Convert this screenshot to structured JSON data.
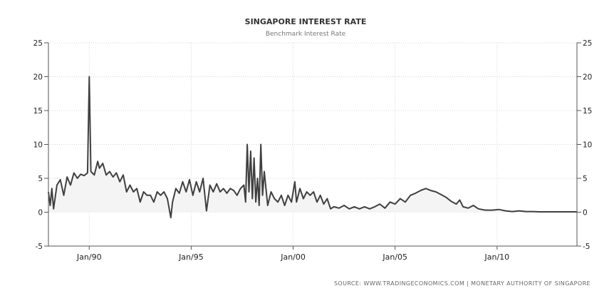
{
  "chart_data": {
    "type": "line",
    "title": "SINGAPORE INTEREST RATE",
    "subtitle": "Benchmark Interest Rate",
    "source": "SOURCE:  WWW.TRADINGECONOMICS.COM  |  MONETARY AUTHORITY  OF  SINGAPORE",
    "xlabel": "",
    "ylabel": "",
    "xlim": [
      "1988-01",
      "2013-12"
    ],
    "ylim": [
      -5,
      25
    ],
    "y_ticks": [
      -5,
      0,
      5,
      10,
      15,
      20,
      25
    ],
    "x_ticks": [
      {
        "date": "1990-01",
        "label": "Jan/90"
      },
      {
        "date": "1995-01",
        "label": "Jan/95"
      },
      {
        "date": "2000-01",
        "label": "Jan/00"
      },
      {
        "date": "2005-01",
        "label": "Jan/05"
      },
      {
        "date": "2010-01",
        "label": "Jan/10"
      }
    ],
    "grid": true,
    "y_axis_both_sides": true,
    "fill_below_line": true,
    "colors": {
      "line": "#404040",
      "grid": "#d4d4d4",
      "axis": "#555555",
      "fill": "#f4f4f4"
    },
    "series": [
      {
        "points": [
          [
            "1988-01",
            3.0
          ],
          [
            "1988-02",
            1.0
          ],
          [
            "1988-03",
            3.5
          ],
          [
            "1988-04",
            0.5
          ],
          [
            "1988-06",
            4.0
          ],
          [
            "1988-08",
            4.8
          ],
          [
            "1988-10",
            2.5
          ],
          [
            "1988-12",
            5.2
          ],
          [
            "1989-02",
            4.0
          ],
          [
            "1989-04",
            5.8
          ],
          [
            "1989-06",
            5.0
          ],
          [
            "1989-08",
            5.6
          ],
          [
            "1989-10",
            5.4
          ],
          [
            "1989-12",
            5.8
          ],
          [
            "1990-01",
            20.0
          ],
          [
            "1990-02",
            6.0
          ],
          [
            "1990-04",
            5.5
          ],
          [
            "1990-06",
            7.5
          ],
          [
            "1990-07",
            6.5
          ],
          [
            "1990-09",
            7.2
          ],
          [
            "1990-11",
            5.5
          ],
          [
            "1991-01",
            6.0
          ],
          [
            "1991-03",
            5.2
          ],
          [
            "1991-05",
            5.8
          ],
          [
            "1991-07",
            4.5
          ],
          [
            "1991-09",
            5.5
          ],
          [
            "1991-11",
            3.0
          ],
          [
            "1992-01",
            4.0
          ],
          [
            "1992-03",
            3.0
          ],
          [
            "1992-05",
            3.5
          ],
          [
            "1992-07",
            1.5
          ],
          [
            "1992-09",
            3.0
          ],
          [
            "1992-11",
            2.5
          ],
          [
            "1993-01",
            2.5
          ],
          [
            "1993-03",
            1.5
          ],
          [
            "1993-05",
            3.0
          ],
          [
            "1993-07",
            2.5
          ],
          [
            "1993-09",
            3.0
          ],
          [
            "1993-11",
            2.0
          ],
          [
            "1994-01",
            -0.8
          ],
          [
            "1994-02",
            1.5
          ],
          [
            "1994-04",
            3.5
          ],
          [
            "1994-06",
            2.8
          ],
          [
            "1994-08",
            4.5
          ],
          [
            "1994-10",
            3.0
          ],
          [
            "1994-12",
            4.8
          ],
          [
            "1995-02",
            2.5
          ],
          [
            "1995-04",
            4.5
          ],
          [
            "1995-06",
            3.0
          ],
          [
            "1995-08",
            5.0
          ],
          [
            "1995-10",
            0.2
          ],
          [
            "1995-12",
            4.0
          ],
          [
            "1996-02",
            3.0
          ],
          [
            "1996-04",
            4.2
          ],
          [
            "1996-06",
            3.0
          ],
          [
            "1996-08",
            3.5
          ],
          [
            "1996-10",
            2.8
          ],
          [
            "1996-12",
            3.5
          ],
          [
            "1997-02",
            3.2
          ],
          [
            "1997-04",
            2.5
          ],
          [
            "1997-06",
            3.5
          ],
          [
            "1997-08",
            4.0
          ],
          [
            "1997-09",
            1.5
          ],
          [
            "1997-10",
            10.0
          ],
          [
            "1997-11",
            3.0
          ],
          [
            "1997-12",
            9.0
          ],
          [
            "1998-01",
            2.0
          ],
          [
            "1998-02",
            8.0
          ],
          [
            "1998-03",
            1.5
          ],
          [
            "1998-04",
            5.0
          ],
          [
            "1998-05",
            1.0
          ],
          [
            "1998-06",
            10.0
          ],
          [
            "1998-07",
            2.5
          ],
          [
            "1998-08",
            6.0
          ],
          [
            "1998-10",
            1.0
          ],
          [
            "1998-12",
            3.0
          ],
          [
            "1999-02",
            2.0
          ],
          [
            "1999-04",
            1.5
          ],
          [
            "1999-06",
            2.5
          ],
          [
            "1999-08",
            1.0
          ],
          [
            "1999-10",
            2.5
          ],
          [
            "1999-12",
            1.5
          ],
          [
            "2000-02",
            4.5
          ],
          [
            "2000-03",
            1.5
          ],
          [
            "2000-05",
            3.5
          ],
          [
            "2000-07",
            2.0
          ],
          [
            "2000-09",
            3.0
          ],
          [
            "2000-11",
            2.5
          ],
          [
            "2001-01",
            3.0
          ],
          [
            "2001-03",
            1.5
          ],
          [
            "2001-05",
            2.5
          ],
          [
            "2001-07",
            1.2
          ],
          [
            "2001-09",
            2.0
          ],
          [
            "2001-11",
            0.5
          ],
          [
            "2002-01",
            0.8
          ],
          [
            "2002-04",
            0.6
          ],
          [
            "2002-07",
            1.0
          ],
          [
            "2002-10",
            0.5
          ],
          [
            "2003-01",
            0.8
          ],
          [
            "2003-04",
            0.5
          ],
          [
            "2003-07",
            0.8
          ],
          [
            "2003-10",
            0.5
          ],
          [
            "2004-01",
            0.8
          ],
          [
            "2004-04",
            1.2
          ],
          [
            "2004-07",
            0.6
          ],
          [
            "2004-10",
            1.5
          ],
          [
            "2005-01",
            1.2
          ],
          [
            "2005-04",
            2.0
          ],
          [
            "2005-07",
            1.5
          ],
          [
            "2005-10",
            2.5
          ],
          [
            "2006-01",
            2.8
          ],
          [
            "2006-04",
            3.2
          ],
          [
            "2006-07",
            3.5
          ],
          [
            "2006-10",
            3.2
          ],
          [
            "2007-01",
            3.0
          ],
          [
            "2007-04",
            2.6
          ],
          [
            "2007-07",
            2.2
          ],
          [
            "2007-10",
            1.6
          ],
          [
            "2008-01",
            1.2
          ],
          [
            "2008-03",
            1.8
          ],
          [
            "2008-05",
            0.8
          ],
          [
            "2008-08",
            0.6
          ],
          [
            "2008-11",
            1.0
          ],
          [
            "2009-02",
            0.5
          ],
          [
            "2009-06",
            0.3
          ],
          [
            "2009-10",
            0.3
          ],
          [
            "2010-02",
            0.4
          ],
          [
            "2010-06",
            0.2
          ],
          [
            "2010-10",
            0.1
          ],
          [
            "2011-02",
            0.2
          ],
          [
            "2011-06",
            0.1
          ],
          [
            "2011-10",
            0.1
          ],
          [
            "2012-02",
            0.05
          ],
          [
            "2012-06",
            0.05
          ],
          [
            "2012-10",
            0.05
          ],
          [
            "2013-02",
            0.05
          ],
          [
            "2013-06",
            0.05
          ],
          [
            "2013-12",
            0.05
          ]
        ]
      }
    ]
  }
}
